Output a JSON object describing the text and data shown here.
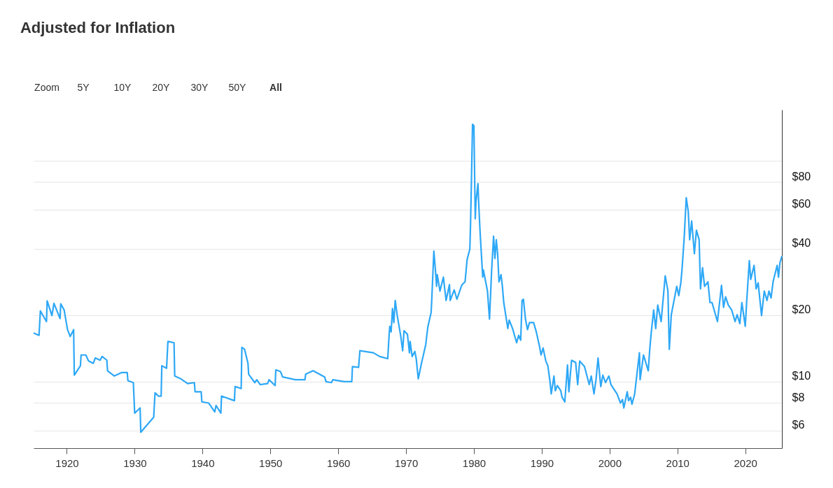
{
  "chart_data": {
    "type": "line",
    "title": "Adjusted for Inflation",
    "annotations": [
      "Zoom",
      "5Y",
      "10Y",
      "20Y",
      "30Y",
      "50Y",
      "All"
    ],
    "x": [
      1915.1,
      1915.9,
      1916.1,
      1917.0,
      1917.1,
      1917.8,
      1918.1,
      1919.0,
      1919.1,
      1919.6,
      1920.1,
      1920.5,
      1921.0,
      1921.1,
      1922.0,
      1922.1,
      1922.8,
      1923.2,
      1923.9,
      1924.2,
      1924.9,
      1925.2,
      1925.9,
      1926.0,
      1927.0,
      1928.1,
      1928.9,
      1929.0,
      1929.8,
      1930.0,
      1930.8,
      1930.9,
      1932.8,
      1933.0,
      1933.5,
      1933.9,
      1934.0,
      1934.7,
      1934.9,
      1935.8,
      1935.9,
      1936.8,
      1937.8,
      1938.8,
      1938.9,
      1939.8,
      1939.9,
      1940.9,
      1941.8,
      1942.0,
      1942.7,
      1942.8,
      1944.7,
      1944.8,
      1945.7,
      1945.8,
      1946.2,
      1946.7,
      1946.8,
      1947.7,
      1948.0,
      1948.5,
      1949.6,
      1949.8,
      1950.7,
      1950.8,
      1951.5,
      1951.8,
      1953.1,
      1953.7,
      1955.1,
      1955.2,
      1956.3,
      1958.0,
      1958.2,
      1959.0,
      1959.2,
      1960.9,
      1962.0,
      1962.1,
      1963.0,
      1963.2,
      1965.2,
      1966.1,
      1967.3,
      1967.5,
      1967.6,
      1967.8,
      1968.0,
      1968.2,
      1968.4,
      1968.7,
      1969.2,
      1969.5,
      1969.7,
      1970.2,
      1970.5,
      1970.6,
      1970.9,
      1971.3,
      1971.5,
      1971.8,
      1972.3,
      1972.9,
      1973.2,
      1973.7,
      1973.8,
      1974.1,
      1974.3,
      1974.5,
      1974.6,
      1975.0,
      1975.5,
      1975.9,
      1976.4,
      1976.5,
      1977.1,
      1977.5,
      1978.2,
      1978.7,
      1979.0,
      1979.4,
      1979.5,
      1979.6,
      1979.8,
      1980.0,
      1980.2,
      1980.3,
      1980.6,
      1980.7,
      1980.9,
      1981.3,
      1981.4,
      1982.0,
      1982.3,
      1982.6,
      1982.9,
      1983.1,
      1983.3,
      1983.5,
      1983.7,
      1984.0,
      1984.2,
      1984.4,
      1985.0,
      1985.2,
      1985.7,
      1986.3,
      1986.6,
      1986.9,
      1987.1,
      1987.3,
      1987.6,
      1987.9,
      1988.2,
      1988.8,
      1989.2,
      1989.7,
      1989.9,
      1990.2,
      1990.6,
      1990.9,
      1991.2,
      1991.4,
      1991.8,
      1992.0,
      1992.3,
      1992.8,
      1993.0,
      1993.4,
      1993.8,
      1994.0,
      1994.4,
      1995.0,
      1995.3,
      1995.6,
      1996.3,
      1997.0,
      1997.3,
      1997.7,
      1998.0,
      1998.3,
      1998.7,
      1999.0,
      1999.4,
      1999.9,
      2000.2,
      2001.1,
      2001.6,
      2001.9,
      2002.1,
      2002.6,
      2002.8,
      2003.1,
      2003.3,
      2003.7,
      2004.0,
      2004.4,
      2004.5,
      2005.0,
      2005.7,
      2005.9,
      2006.1,
      2006.5,
      2006.8,
      2007.1,
      2007.6,
      2008.2,
      2008.6,
      2008.8,
      2009.1,
      2009.5,
      2009.9,
      2010.2,
      2010.5,
      2010.7,
      2011.0,
      2011.3,
      2011.6,
      2011.8,
      2012.1,
      2012.5,
      2012.8,
      2013.2,
      2013.4,
      2013.7,
      2014.0,
      2014.5,
      2014.8,
      2015.1,
      2015.9,
      2016.5,
      2016.8,
      2017.1,
      2017.5,
      2018.0,
      2018.5,
      2018.8,
      2019.2,
      2019.5,
      2020.0,
      2020.2,
      2020.6,
      2020.8,
      2021.3,
      2021.6,
      2021.9,
      2022.4,
      2022.8,
      2023.2,
      2023.5,
      2023.8,
      2024.1,
      2024.7,
      2024.9,
      2025.1,
      2025.4
    ],
    "series": [
      {
        "color": "#2ea8f6",
        "values": [
          16.6,
          16.2,
          20.9,
          18.7,
          23.2,
          19.9,
          22.6,
          19.3,
          22.5,
          21.1,
          17.2,
          16.0,
          17.2,
          10.7,
          11.8,
          13.2,
          13.2,
          12.4,
          12.1,
          12.8,
          12.5,
          13.0,
          12.5,
          11.2,
          10.6,
          11.0,
          11.0,
          10.1,
          9.9,
          7.2,
          7.6,
          5.9,
          6.9,
          8.9,
          8.6,
          8.6,
          11.8,
          11.5,
          15.2,
          15.0,
          10.6,
          10.3,
          9.8,
          9.9,
          9.0,
          9.0,
          8.1,
          8.0,
          7.3,
          7.8,
          7.2,
          8.6,
          8.2,
          9.5,
          9.3,
          14.3,
          14.0,
          12.1,
          10.8,
          9.9,
          10.2,
          9.7,
          9.8,
          10.2,
          9.6,
          11.3,
          11.1,
          10.5,
          10.3,
          10.2,
          10.2,
          10.8,
          11.2,
          10.5,
          10.0,
          9.9,
          10.2,
          10.0,
          10.0,
          11.7,
          11.6,
          13.8,
          13.5,
          13.0,
          12.7,
          16.2,
          17.8,
          16.8,
          21.4,
          18.5,
          23.3,
          19.9,
          16.2,
          13.8,
          17.0,
          16.4,
          13.5,
          15.2,
          13.0,
          13.7,
          12.7,
          10.3,
          12.2,
          14.7,
          17.6,
          20.6,
          23.9,
          39.0,
          32.8,
          27.0,
          30.5,
          25.7,
          29.7,
          23.3,
          27.5,
          23.3,
          26.0,
          23.6,
          27.3,
          28.3,
          35.7,
          39.8,
          50.8,
          71.4,
          146,
          144,
          54.6,
          64.8,
          78.7,
          64.8,
          48.4,
          29.7,
          32.0,
          25.7,
          19.2,
          31.2,
          45.5,
          36.1,
          43.9,
          37.9,
          28.3,
          30.5,
          27.0,
          22.8,
          17.4,
          19.0,
          17.4,
          15.0,
          16.2,
          15.4,
          23.3,
          23.6,
          19.2,
          17.2,
          18.5,
          18.5,
          16.8,
          14.3,
          13.2,
          14.2,
          12.4,
          11.8,
          10.1,
          8.8,
          10.6,
          9.1,
          9.6,
          9.1,
          8.5,
          8.1,
          11.9,
          9.0,
          12.5,
          12.2,
          9.7,
          12.4,
          11.7,
          9.7,
          10.6,
          8.8,
          10.2,
          12.8,
          9.5,
          10.7,
          9.9,
          10.6,
          9.7,
          8.8,
          8.0,
          8.3,
          7.6,
          9.0,
          8.2,
          8.5,
          7.9,
          8.8,
          10.6,
          13.5,
          10.2,
          13.2,
          11.2,
          13.7,
          16.2,
          21.1,
          17.4,
          22.2,
          18.7,
          30.1,
          25.7,
          14.0,
          20.1,
          23.3,
          27.0,
          24.5,
          28.0,
          32.8,
          45.0,
          68.0,
          58.7,
          43.9,
          53.3,
          37.9,
          48.4,
          43.9,
          26.3,
          32.8,
          27.0,
          28.3,
          22.8,
          22.8,
          18.7,
          27.3,
          21.7,
          24.2,
          22.2,
          21.1,
          18.7,
          20.1,
          18.3,
          22.8,
          17.8,
          22.8,
          35.3,
          29.0,
          33.6,
          26.3,
          28.0,
          19.9,
          25.7,
          23.3,
          25.7,
          23.9,
          28.3,
          33.6,
          29.7,
          34.4,
          37.0
        ]
      }
    ],
    "xlim": [
      1915.1,
      2025.4
    ],
    "xticks": [
      1920,
      1930,
      1940,
      1950,
      1960,
      1970,
      1980,
      1990,
      2000,
      2010,
      2020
    ],
    "ylim": [
      5,
      170
    ],
    "yticks": [
      {
        "value": 100,
        "label": null
      },
      {
        "value": 80,
        "label": "$80"
      },
      {
        "value": 60,
        "label": "$60"
      },
      {
        "value": 40,
        "label": "$40"
      },
      {
        "value": 20,
        "label": "$20"
      },
      {
        "value": 10,
        "label": "$10"
      },
      {
        "value": 8,
        "label": "$8"
      },
      {
        "value": 6,
        "label": "$6"
      }
    ],
    "log": "y",
    "grid": "y",
    "marker": "none",
    "line_style": "solid",
    "legend": false
  }
}
